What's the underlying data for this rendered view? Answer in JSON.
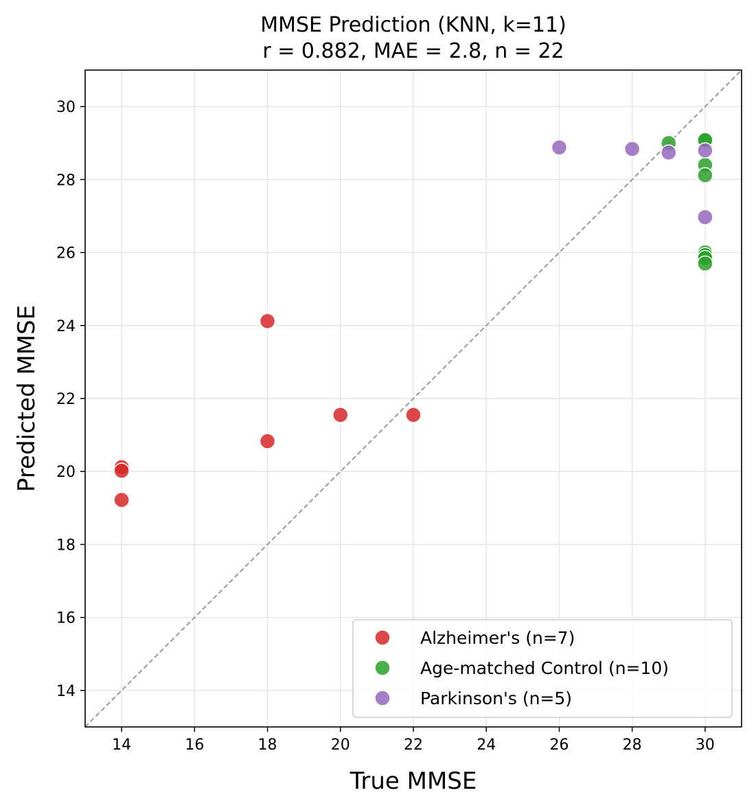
{
  "chart_data": {
    "type": "scatter",
    "title": "MMSE Prediction (KNN, k=11)",
    "subtitle": "r = 0.882, MAE = 2.8, n = 22",
    "xlabel": "True MMSE",
    "ylabel": "Predicted MMSE",
    "xlim": [
      13,
      31
    ],
    "ylim": [
      13,
      31
    ],
    "xticks": [
      14,
      16,
      18,
      20,
      22,
      24,
      26,
      28,
      30
    ],
    "yticks": [
      14,
      16,
      18,
      20,
      22,
      24,
      26,
      28,
      30
    ],
    "grid": true,
    "reference_line": "y = x",
    "legend_position": "bottom-right",
    "series": [
      {
        "name": "Alzheimer's (n=7)",
        "color": "#d62728",
        "points": [
          [
            14,
            20.12
          ],
          [
            14,
            20.02
          ],
          [
            14,
            19.22
          ],
          [
            18,
            24.12
          ],
          [
            18,
            20.83
          ],
          [
            20,
            21.55
          ],
          [
            22,
            21.55
          ]
        ]
      },
      {
        "name": "Age-matched Control (n=10)",
        "color": "#2ca02c",
        "points": [
          [
            29,
            29.0
          ],
          [
            30,
            29.1
          ],
          [
            30,
            29.08
          ],
          [
            30,
            28.4
          ],
          [
            30,
            28.12
          ],
          [
            30,
            26.02
          ],
          [
            30,
            26.0
          ],
          [
            30,
            25.93
          ],
          [
            30,
            25.85
          ],
          [
            30,
            25.7
          ]
        ]
      },
      {
        "name": "Parkinson's (n=5)",
        "color": "#9467bd",
        "points": [
          [
            26,
            28.88
          ],
          [
            28,
            28.84
          ],
          [
            29,
            28.74
          ],
          [
            30,
            28.8
          ],
          [
            30,
            26.97
          ]
        ]
      }
    ]
  }
}
